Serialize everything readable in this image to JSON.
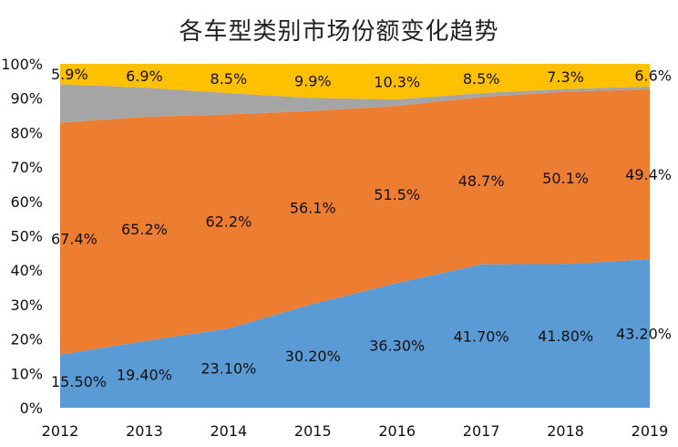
{
  "chart_data": {
    "type": "area",
    "title": "各车型类别市场份额变化趋势",
    "categories": [
      "2012",
      "2013",
      "2014",
      "2015",
      "2016",
      "2017",
      "2018",
      "2019"
    ],
    "ylim": [
      0,
      100
    ],
    "yticks": [
      "0%",
      "10%",
      "20%",
      "30%",
      "40%",
      "50%",
      "60%",
      "70%",
      "80%",
      "90%",
      "100%"
    ],
    "stacked": true,
    "percent_stacked": true,
    "grid": false,
    "legend": "none",
    "series": [
      {
        "color": "#5B9BD5",
        "values": [
          15.5,
          19.4,
          23.1,
          30.2,
          36.3,
          41.7,
          41.8,
          43.2
        ],
        "labels": [
          "15.50%",
          "19.40%",
          "23.10%",
          "30.20%",
          "36.30%",
          "41.70%",
          "41.80%",
          "43.20%"
        ]
      },
      {
        "color": "#ED7D31",
        "values": [
          67.4,
          65.2,
          62.2,
          56.1,
          51.5,
          48.7,
          50.1,
          49.4
        ],
        "labels": [
          "67.4%",
          "65.2%",
          "62.2%",
          "56.1%",
          "51.5%",
          "48.7%",
          "50.1%",
          "49.4%"
        ]
      },
      {
        "color": "#A5A5A5",
        "values": [
          11.2,
          8.5,
          6.2,
          3.8,
          1.9,
          1.1,
          0.8,
          0.8
        ],
        "labels": []
      },
      {
        "color": "#FFC000",
        "values": [
          5.9,
          6.9,
          8.5,
          9.9,
          10.3,
          8.5,
          7.3,
          6.6
        ],
        "labels": [
          "5.9%",
          "6.9%",
          "8.5%",
          "9.9%",
          "10.3%",
          "8.5%",
          "7.3%",
          "6.6%"
        ]
      }
    ]
  }
}
